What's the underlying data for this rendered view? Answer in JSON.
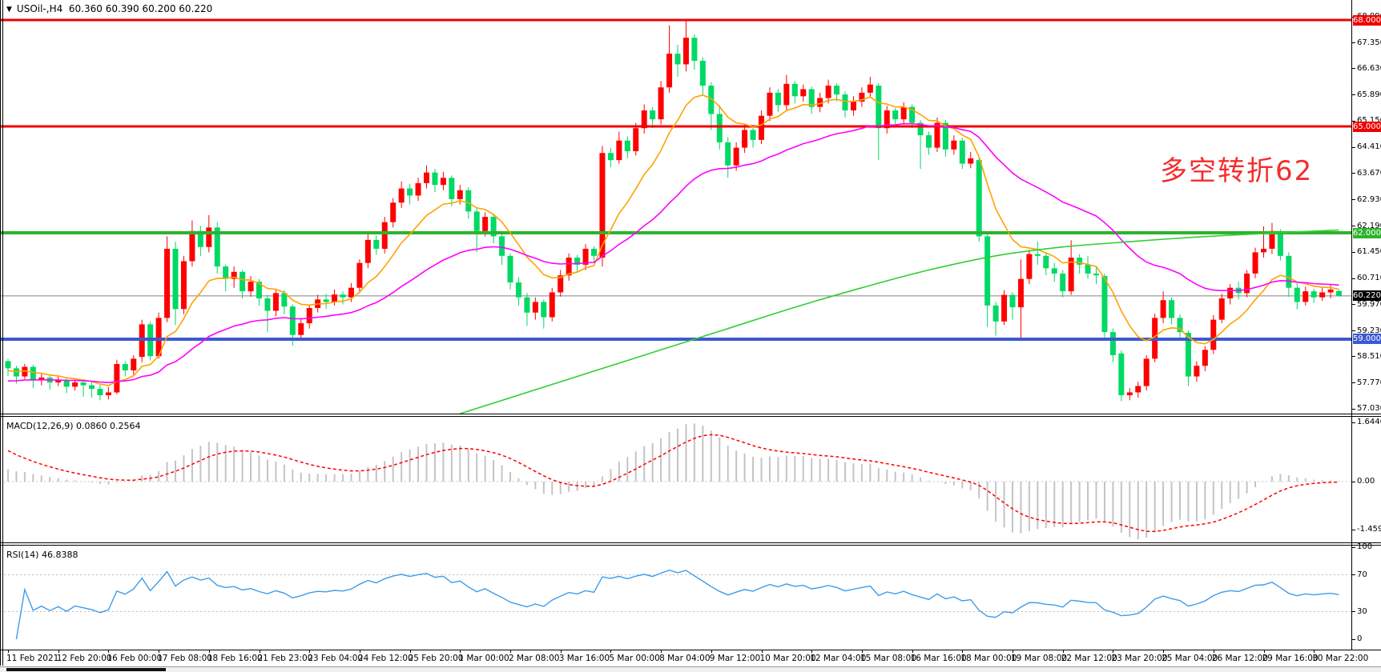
{
  "window": {
    "symbol_title": "USOil-,H4",
    "ohlc_line": "60.360 60.390 60.200 60.220",
    "dropdown_icon": "▼"
  },
  "colors": {
    "up_candle": "#FF0000",
    "down_candle": "#00D964",
    "level_red": "#F00000",
    "level_green": "#2DB22D",
    "level_blue": "#3C59D1",
    "current_price_line": "#808080",
    "current_price_badge": "#000000",
    "ma_fast": "#FFA200",
    "ma_mid": "#FF00FF",
    "ma_slow": "#32CD32",
    "macd_hist": "#C4C4C4",
    "macd_signal": "#FF0000",
    "rsi_line": "#3E9CEA",
    "rsi_level_dash": "#BBBBBB",
    "annotation_red": "#F42C2C"
  },
  "annotation": {
    "text": "多空转折62"
  },
  "main_chart": {
    "y_ticks": [
      "68.090",
      "67.350",
      "66.630",
      "65.890",
      "65.150",
      "64.410",
      "63.670",
      "62.930",
      "62.190",
      "61.450",
      "60.710",
      "59.970",
      "59.230",
      "58.510",
      "57.770",
      "57.030"
    ],
    "levels": [
      {
        "label": "68.000",
        "price": 68.0,
        "color": "#F00000",
        "width": 3
      },
      {
        "label": "65.000",
        "price": 65.0,
        "color": "#F00000",
        "width": 3
      },
      {
        "label": "62.000",
        "price": 62.0,
        "color": "#2DB22D",
        "width": 4
      },
      {
        "label": "59.000",
        "price": 59.0,
        "color": "#3C59D1",
        "width": 4
      }
    ],
    "current_price": {
      "label": "60.220",
      "price": 60.22
    },
    "ylim": [
      56.92,
      68.56
    ]
  },
  "indicators": {
    "macd": {
      "name_label": "MACD(12,26,9)",
      "values_label": "0.0860 0.2564",
      "params": [
        12,
        26,
        9
      ],
      "axis_labels": [
        "1.6446",
        "0.00",
        "-1.4594"
      ]
    },
    "rsi": {
      "name_label": "RSI(14)",
      "value_label": "46.8388",
      "period": 14,
      "levels": [
        70,
        30
      ],
      "axis_labels": [
        "100",
        "70",
        "30",
        "0"
      ]
    }
  },
  "chart_data": {
    "type": "candlestick",
    "symbol": "USOil-",
    "timeframe": "H4",
    "x_label_step": 6,
    "x_labels": [
      "11 Feb 2021",
      "12 Feb 20:00",
      "16 Feb 00:00",
      "17 Feb 08:00",
      "18 Feb 16:00",
      "21 Feb 23:00",
      "23 Feb 04:00",
      "24 Feb 12:00",
      "25 Feb 20:00",
      "1 Mar 00:00",
      "2 Mar 08:00",
      "3 Mar 16:00",
      "5 Mar 00:00",
      "8 Mar 04:00",
      "9 Mar 12:00",
      "10 Mar 20:00",
      "12 Mar 04:00",
      "15 Mar 08:00",
      "16 Mar 16:00",
      "18 Mar 00:00",
      "19 Mar 08:00",
      "22 Mar 12:00",
      "23 Mar 20:00",
      "25 Mar 04:00",
      "26 Mar 12:00",
      "29 Mar 16:00",
      "30 Mar 22:00"
    ],
    "ohlc": [
      [
        58.38,
        58.45,
        57.95,
        58.18
      ],
      [
        58.18,
        58.25,
        57.75,
        57.95
      ],
      [
        57.95,
        58.3,
        57.88,
        58.22
      ],
      [
        58.22,
        58.28,
        57.62,
        57.86
      ],
      [
        57.86,
        58.05,
        57.7,
        57.92
      ],
      [
        57.92,
        57.98,
        57.58,
        57.78
      ],
      [
        57.78,
        57.95,
        57.68,
        57.85
      ],
      [
        57.85,
        57.92,
        57.48,
        57.66
      ],
      [
        57.66,
        57.88,
        57.55,
        57.78
      ],
      [
        57.78,
        57.85,
        57.38,
        57.7
      ],
      [
        57.7,
        57.8,
        57.35,
        57.6
      ],
      [
        57.6,
        57.72,
        57.28,
        57.42
      ],
      [
        57.42,
        57.65,
        57.3,
        57.5
      ],
      [
        57.5,
        58.42,
        57.45,
        58.3
      ],
      [
        58.3,
        58.38,
        57.95,
        58.12
      ],
      [
        58.12,
        58.55,
        58.0,
        58.45
      ],
      [
        58.5,
        59.55,
        58.35,
        59.42
      ],
      [
        59.42,
        59.5,
        58.4,
        58.52
      ],
      [
        58.52,
        59.75,
        58.45,
        59.6
      ],
      [
        59.6,
        61.9,
        59.48,
        61.55
      ],
      [
        61.55,
        61.75,
        59.4,
        59.85
      ],
      [
        59.85,
        61.35,
        59.7,
        61.2
      ],
      [
        61.2,
        62.35,
        61.05,
        62.05
      ],
      [
        62.05,
        62.2,
        61.35,
        61.6
      ],
      [
        61.6,
        62.5,
        61.45,
        62.15
      ],
      [
        62.15,
        62.3,
        60.85,
        61.05
      ],
      [
        61.05,
        61.1,
        60.35,
        60.7
      ],
      [
        60.7,
        61.05,
        60.45,
        60.9
      ],
      [
        60.9,
        60.95,
        60.15,
        60.35
      ],
      [
        60.35,
        60.78,
        60.2,
        60.62
      ],
      [
        60.62,
        60.7,
        59.95,
        60.15
      ],
      [
        60.15,
        60.25,
        59.2,
        59.8
      ],
      [
        59.8,
        60.42,
        59.65,
        60.3
      ],
      [
        60.3,
        60.38,
        59.7,
        59.92
      ],
      [
        59.92,
        59.98,
        58.82,
        59.12
      ],
      [
        59.12,
        59.6,
        58.95,
        59.45
      ],
      [
        59.45,
        59.98,
        59.3,
        59.88
      ],
      [
        59.88,
        60.25,
        59.75,
        60.12
      ],
      [
        60.12,
        60.28,
        59.85,
        60.05
      ],
      [
        60.05,
        60.4,
        59.95,
        60.26
      ],
      [
        60.26,
        60.35,
        59.98,
        60.18
      ],
      [
        60.18,
        60.58,
        60.05,
        60.45
      ],
      [
        60.45,
        61.25,
        60.3,
        61.15
      ],
      [
        61.15,
        62.0,
        61.0,
        61.8
      ],
      [
        61.8,
        61.92,
        61.38,
        61.55
      ],
      [
        61.55,
        62.45,
        61.42,
        62.3
      ],
      [
        62.3,
        62.98,
        62.15,
        62.85
      ],
      [
        62.85,
        63.45,
        62.7,
        63.25
      ],
      [
        63.25,
        63.38,
        62.8,
        63.05
      ],
      [
        63.05,
        63.55,
        62.9,
        63.4
      ],
      [
        63.4,
        63.9,
        63.25,
        63.7
      ],
      [
        63.7,
        63.8,
        63.15,
        63.35
      ],
      [
        63.35,
        63.72,
        63.2,
        63.55
      ],
      [
        63.55,
        63.62,
        62.75,
        62.95
      ],
      [
        62.95,
        63.35,
        62.8,
        63.2
      ],
      [
        63.2,
        63.28,
        62.4,
        62.6
      ],
      [
        62.6,
        62.7,
        61.45,
        62.05
      ],
      [
        62.05,
        62.58,
        61.9,
        62.45
      ],
      [
        62.45,
        62.52,
        61.7,
        61.9
      ],
      [
        61.9,
        61.98,
        61.1,
        61.35
      ],
      [
        61.35,
        61.42,
        60.4,
        60.6
      ],
      [
        60.6,
        60.75,
        59.95,
        60.18
      ],
      [
        60.18,
        60.3,
        59.38,
        59.75
      ],
      [
        59.75,
        60.18,
        59.55,
        60.05
      ],
      [
        60.05,
        60.12,
        59.3,
        59.62
      ],
      [
        59.62,
        60.45,
        59.5,
        60.32
      ],
      [
        60.32,
        60.95,
        60.2,
        60.8
      ],
      [
        60.8,
        61.42,
        60.65,
        61.3
      ],
      [
        61.3,
        61.38,
        60.9,
        61.1
      ],
      [
        61.1,
        61.68,
        60.95,
        61.55
      ],
      [
        61.55,
        61.62,
        61.15,
        61.35
      ],
      [
        61.3,
        64.45,
        61.05,
        64.25
      ],
      [
        64.25,
        64.4,
        63.85,
        64.05
      ],
      [
        64.05,
        64.85,
        63.95,
        64.6
      ],
      [
        64.6,
        64.72,
        64.1,
        64.3
      ],
      [
        64.3,
        65.1,
        64.18,
        64.95
      ],
      [
        64.95,
        65.62,
        64.8,
        65.45
      ],
      [
        65.45,
        65.55,
        64.95,
        65.2
      ],
      [
        65.2,
        66.28,
        65.05,
        66.1
      ],
      [
        66.1,
        67.85,
        65.95,
        67.05
      ],
      [
        67.05,
        67.3,
        66.4,
        66.75
      ],
      [
        66.75,
        67.98,
        66.55,
        67.5
      ],
      [
        67.5,
        67.6,
        66.6,
        66.85
      ],
      [
        66.85,
        66.95,
        65.9,
        66.15
      ],
      [
        66.15,
        66.25,
        64.9,
        65.35
      ],
      [
        65.35,
        65.6,
        64.35,
        64.55
      ],
      [
        64.55,
        64.7,
        63.55,
        63.9
      ],
      [
        63.9,
        64.55,
        63.75,
        64.4
      ],
      [
        64.4,
        65.05,
        64.25,
        64.9
      ],
      [
        64.9,
        64.98,
        64.4,
        64.62
      ],
      [
        64.62,
        65.45,
        64.5,
        65.3
      ],
      [
        65.3,
        66.1,
        65.15,
        65.95
      ],
      [
        65.95,
        66.05,
        65.4,
        65.6
      ],
      [
        65.6,
        66.45,
        65.45,
        66.2
      ],
      [
        66.2,
        66.28,
        65.65,
        65.85
      ],
      [
        65.85,
        66.18,
        65.7,
        66.05
      ],
      [
        66.05,
        66.12,
        65.35,
        65.55
      ],
      [
        65.55,
        65.95,
        65.4,
        65.8
      ],
      [
        65.8,
        66.32,
        65.65,
        66.15
      ],
      [
        66.15,
        66.22,
        65.7,
        65.9
      ],
      [
        65.9,
        65.98,
        65.25,
        65.45
      ],
      [
        65.45,
        65.85,
        65.3,
        65.7
      ],
      [
        65.7,
        66.1,
        65.55,
        65.95
      ],
      [
        65.95,
        66.4,
        65.8,
        66.18
      ],
      [
        66.15,
        66.22,
        64.05,
        64.95
      ],
      [
        64.95,
        65.58,
        64.8,
        65.45
      ],
      [
        65.45,
        65.52,
        65.0,
        65.2
      ],
      [
        65.2,
        65.68,
        65.05,
        65.55
      ],
      [
        65.55,
        65.62,
        64.95,
        65.1
      ],
      [
        65.1,
        65.18,
        63.8,
        64.75
      ],
      [
        64.75,
        64.85,
        64.2,
        64.4
      ],
      [
        64.4,
        65.25,
        64.28,
        65.1
      ],
      [
        65.1,
        65.18,
        64.15,
        64.35
      ],
      [
        64.35,
        64.75,
        64.2,
        64.6
      ],
      [
        64.6,
        64.68,
        63.8,
        63.95
      ],
      [
        63.95,
        64.28,
        63.82,
        64.1
      ],
      [
        64.05,
        64.15,
        61.75,
        61.9
      ],
      [
        61.9,
        62.0,
        59.35,
        59.95
      ],
      [
        59.95,
        60.05,
        59.1,
        59.5
      ],
      [
        59.5,
        60.38,
        59.4,
        60.25
      ],
      [
        60.25,
        60.32,
        59.55,
        59.9
      ],
      [
        59.9,
        61.25,
        58.95,
        60.7
      ],
      [
        60.7,
        61.52,
        60.55,
        61.4
      ],
      [
        61.4,
        61.75,
        61.1,
        61.35
      ],
      [
        61.35,
        61.42,
        60.8,
        61.0
      ],
      [
        61.0,
        61.15,
        60.62,
        60.85
      ],
      [
        60.85,
        60.95,
        60.18,
        60.35
      ],
      [
        60.35,
        61.79,
        60.25,
        61.3
      ],
      [
        61.3,
        61.4,
        60.85,
        61.1
      ],
      [
        61.1,
        61.35,
        60.7,
        60.85
      ],
      [
        60.85,
        61.02,
        60.55,
        60.8
      ],
      [
        60.78,
        60.85,
        59.05,
        59.2
      ],
      [
        59.2,
        59.3,
        58.35,
        58.55
      ],
      [
        58.6,
        58.68,
        57.25,
        57.42
      ],
      [
        57.42,
        57.62,
        57.28,
        57.5
      ],
      [
        57.5,
        57.8,
        57.35,
        57.68
      ],
      [
        57.68,
        58.55,
        57.55,
        58.45
      ],
      [
        58.45,
        59.72,
        58.35,
        59.6
      ],
      [
        59.6,
        60.35,
        59.45,
        60.1
      ],
      [
        60.1,
        60.18,
        59.42,
        59.6
      ],
      [
        59.6,
        59.7,
        59.05,
        59.2
      ],
      [
        59.18,
        59.25,
        57.68,
        57.95
      ],
      [
        57.95,
        58.38,
        57.8,
        58.25
      ],
      [
        58.25,
        58.8,
        58.1,
        58.7
      ],
      [
        58.7,
        59.68,
        58.58,
        59.55
      ],
      [
        59.55,
        60.28,
        59.45,
        60.15
      ],
      [
        60.15,
        60.55,
        59.98,
        60.45
      ],
      [
        60.45,
        60.62,
        60.12,
        60.3
      ],
      [
        60.3,
        60.95,
        60.18,
        60.85
      ],
      [
        60.85,
        61.58,
        60.72,
        61.45
      ],
      [
        61.45,
        62.18,
        61.3,
        61.55
      ],
      [
        61.55,
        62.28,
        61.4,
        62.05
      ],
      [
        62.0,
        62.1,
        61.22,
        61.35
      ],
      [
        61.35,
        61.45,
        60.2,
        60.45
      ],
      [
        60.45,
        60.58,
        59.84,
        60.05
      ],
      [
        60.05,
        60.48,
        59.95,
        60.35
      ],
      [
        60.35,
        60.42,
        60.02,
        60.18
      ],
      [
        60.18,
        60.45,
        60.08,
        60.32
      ],
      [
        60.32,
        60.55,
        60.15,
        60.4
      ],
      [
        60.36,
        60.39,
        60.2,
        60.22
      ]
    ],
    "moving_averages": [
      {
        "name": "fast-ma",
        "type": "ema",
        "period": 10,
        "seed": 58.1,
        "color_key": "ma_fast"
      },
      {
        "name": "mid-ma",
        "type": "ema",
        "period": 34,
        "seed": 57.8,
        "color_key": "ma_mid"
      }
    ],
    "slow_ma_anchors": [
      [
        54,
        56.9
      ],
      [
        62,
        57.5
      ],
      [
        70,
        58.1
      ],
      [
        78,
        58.7
      ],
      [
        86,
        59.3
      ],
      [
        94,
        59.9
      ],
      [
        102,
        60.45
      ],
      [
        110,
        60.95
      ],
      [
        118,
        61.35
      ],
      [
        126,
        61.6
      ],
      [
        134,
        61.75
      ],
      [
        142,
        61.88
      ],
      [
        150,
        61.98
      ],
      [
        159,
        62.08
      ]
    ]
  }
}
